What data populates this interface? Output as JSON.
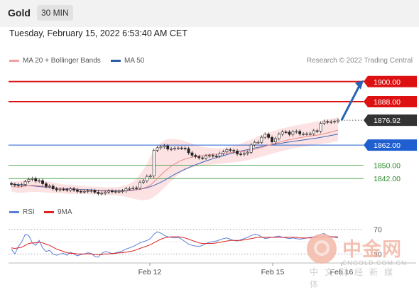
{
  "header": {
    "symbol": "Gold",
    "timeframe": "30 MIN"
  },
  "datetime": "Tuesday, February 15, 2022 6:53:40 AM CET",
  "legend": {
    "ma20": {
      "label": "MA 20 + Bollinger Bands",
      "color": "#f08080"
    },
    "ma50": {
      "label": "MA 50",
      "color": "#2a5ca8"
    },
    "rsi": {
      "label": "RSI",
      "color": "#5b7fd6"
    },
    "rsi_ma": {
      "label": "9MA",
      "color": "#dd2222"
    }
  },
  "credit": "Research © 2022 Trading Central",
  "watermark": {
    "logo_text": "中金网",
    "domain": "CNGOLD.COM.CN",
    "tagline": "中文财经新媒体"
  },
  "chart_data": [
    {
      "type": "candlestick",
      "title": "Gold",
      "timeframe": "30 MIN",
      "ylim": [
        1834,
        1908
      ],
      "x_tick_labels": [
        "Feb 12",
        "Feb 15",
        "Feb 16"
      ],
      "price_levels": [
        {
          "label": "1900.00",
          "value": 1900.0,
          "color": "#dd1111"
        },
        {
          "label": "1888.00",
          "value": 1888.0,
          "color": "#dd1111"
        },
        {
          "label": "1876.92",
          "value": 1876.92,
          "color": "#333333"
        },
        {
          "label": "1862.00",
          "value": 1862.0,
          "color": "#1f5fd0"
        },
        {
          "label": "1850.00",
          "value": 1850.0,
          "color": "#3a9a3a"
        },
        {
          "label": "1842.00",
          "value": 1842.0,
          "color": "#3a9a3a"
        }
      ],
      "close": [
        1838.5,
        1838.2,
        1837.9,
        1838.4,
        1840.2,
        1841.5,
        1842.0,
        1840.5,
        1840.8,
        1838.9,
        1837.3,
        1837.5,
        1835.9,
        1835.2,
        1835.6,
        1835.5,
        1835.0,
        1835.9,
        1835.1,
        1834.3,
        1834.1,
        1834.3,
        1834.6,
        1834.8,
        1833.8,
        1833.0,
        1833.2,
        1833.9,
        1834.5,
        1834.1,
        1834.2,
        1834.3,
        1834.6,
        1835.9,
        1836.0,
        1836.4,
        1836.3,
        1839.8,
        1840.5,
        1843.3,
        1843.5,
        1858.9,
        1860.4,
        1860.9,
        1861.6,
        1859.6,
        1859.8,
        1860.2,
        1860.3,
        1860.2,
        1859.9,
        1857.4,
        1855.9,
        1855.1,
        1854.4,
        1854.2,
        1855.5,
        1855.8,
        1855.5,
        1855.4,
        1857.0,
        1858.0,
        1859.3,
        1858.9,
        1858.5,
        1856.7,
        1856.5,
        1857.0,
        1857.7,
        1862.1,
        1863.7,
        1863.7,
        1866.7,
        1868.5,
        1866.6,
        1863.9,
        1865.9,
        1868.5,
        1869.9,
        1869.8,
        1868.4,
        1870.0,
        1870.2,
        1868.7,
        1868.7,
        1868.8,
        1868.8,
        1870.6,
        1870.3,
        1875.0,
        1876.1,
        1875.8,
        1876.0,
        1876.2,
        1876.9
      ],
      "ma20": [
        1837.1,
        1837.0,
        1836.9,
        1837.2,
        1837.5,
        1837.8,
        1837.9,
        1837.8,
        1837.6,
        1837.4,
        1837.1,
        1836.9,
        1836.6,
        1836.3,
        1836.0,
        1835.8,
        1835.6,
        1835.5,
        1835.4,
        1835.3,
        1835.2,
        1835.1,
        1835.0,
        1834.9,
        1834.8,
        1834.7,
        1834.6,
        1834.5,
        1834.5,
        1834.4,
        1834.4,
        1834.4,
        1834.5,
        1834.6,
        1834.7,
        1834.9,
        1835.2,
        1835.7,
        1836.3,
        1837.0,
        1838.0,
        1840.0,
        1842.0,
        1844.0,
        1846.0,
        1847.8,
        1849.3,
        1850.7,
        1851.9,
        1852.9,
        1853.7,
        1854.3,
        1854.8,
        1855.2,
        1855.5,
        1855.8,
        1856.0,
        1856.2,
        1856.4,
        1856.6,
        1856.8,
        1857.0,
        1857.3,
        1857.5,
        1857.7,
        1857.9,
        1858.1,
        1858.3,
        1858.6,
        1859.0,
        1859.5,
        1860.0,
        1860.6,
        1861.3,
        1861.9,
        1862.5,
        1863.1,
        1863.7,
        1864.3,
        1864.8,
        1865.3,
        1865.7,
        1866.1,
        1866.5,
        1866.8,
        1867.1,
        1867.4,
        1867.7,
        1868.0,
        1868.4,
        1868.8,
        1869.3,
        1869.8,
        1870.4,
        1871.0
      ],
      "bb_upper": [
        1840.0,
        1840.3,
        1840.5,
        1840.9,
        1841.3,
        1841.6,
        1841.8,
        1841.6,
        1841.3,
        1840.9,
        1840.5,
        1840.1,
        1839.7,
        1839.3,
        1838.9,
        1838.6,
        1838.4,
        1838.2,
        1838.0,
        1837.8,
        1837.6,
        1837.4,
        1837.3,
        1837.2,
        1837.1,
        1837.0,
        1836.9,
        1836.8,
        1836.8,
        1836.8,
        1836.9,
        1837.1,
        1837.5,
        1838.1,
        1838.9,
        1840.2,
        1842.0,
        1844.5,
        1847.5,
        1851.0,
        1855.0,
        1858.5,
        1861.5,
        1863.5,
        1864.8,
        1865.5,
        1865.8,
        1865.7,
        1865.4,
        1864.9,
        1864.3,
        1863.6,
        1862.9,
        1862.2,
        1861.6,
        1861.1,
        1860.7,
        1860.4,
        1860.2,
        1860.1,
        1860.1,
        1860.3,
        1860.6,
        1861.0,
        1861.5,
        1862.1,
        1862.8,
        1863.6,
        1864.5,
        1865.4,
        1866.3,
        1867.2,
        1868.0,
        1868.8,
        1869.5,
        1870.2,
        1870.8,
        1871.4,
        1872.0,
        1872.5,
        1873.0,
        1873.4,
        1873.8,
        1874.2,
        1874.6,
        1875.0,
        1875.4,
        1875.8,
        1876.2,
        1876.6,
        1877.0,
        1877.4,
        1877.8,
        1878.2,
        1878.6
      ],
      "bb_lower": [
        1834.2,
        1833.8,
        1833.4,
        1833.4,
        1833.6,
        1833.9,
        1834.0,
        1834.0,
        1833.9,
        1833.8,
        1833.6,
        1833.5,
        1833.4,
        1833.2,
        1833.1,
        1833.0,
        1832.9,
        1832.8,
        1832.8,
        1832.8,
        1832.8,
        1832.8,
        1832.7,
        1832.6,
        1832.5,
        1832.4,
        1832.3,
        1832.2,
        1832.2,
        1832.0,
        1831.9,
        1831.7,
        1831.5,
        1831.1,
        1830.6,
        1830.0,
        1829.5,
        1829.2,
        1829.0,
        1829.2,
        1829.8,
        1831.0,
        1832.5,
        1834.5,
        1836.5,
        1838.5,
        1840.5,
        1842.5,
        1844.3,
        1845.8,
        1847.0,
        1847.9,
        1848.6,
        1849.1,
        1849.5,
        1849.8,
        1850.0,
        1850.2,
        1850.4,
        1850.6,
        1850.8,
        1851.0,
        1851.3,
        1851.5,
        1851.7,
        1852.0,
        1852.3,
        1852.6,
        1853.0,
        1853.5,
        1854.0,
        1854.5,
        1855.1,
        1855.7,
        1856.3,
        1856.9,
        1857.5,
        1858.0,
        1858.5,
        1859.0,
        1859.5,
        1860.0,
        1860.4,
        1860.8,
        1861.1,
        1861.4,
        1861.7,
        1862.0,
        1862.3,
        1862.6,
        1862.9,
        1863.2,
        1863.6,
        1864.0,
        1864.4
      ],
      "ma50": [
        1838.8,
        1838.6,
        1838.4,
        1838.2,
        1838.0,
        1837.8,
        1837.6,
        1837.4,
        1837.2,
        1837.0,
        1836.8,
        1836.6,
        1836.4,
        1836.2,
        1836.1,
        1836.0,
        1835.9,
        1835.8,
        1835.7,
        1835.6,
        1835.5,
        1835.4,
        1835.3,
        1835.2,
        1835.1,
        1835.0,
        1834.9,
        1834.8,
        1834.8,
        1834.8,
        1834.8,
        1834.8,
        1834.8,
        1834.9,
        1835.0,
        1835.1,
        1835.3,
        1835.6,
        1836.0,
        1836.5,
        1837.1,
        1837.9,
        1838.8,
        1839.8,
        1840.9,
        1842.1,
        1843.3,
        1844.5,
        1845.6,
        1846.6,
        1847.6,
        1848.5,
        1849.4,
        1850.2,
        1851.0,
        1851.8,
        1852.5,
        1853.2,
        1853.9,
        1854.5,
        1855.1,
        1855.7,
        1856.3,
        1856.9,
        1857.4,
        1857.9,
        1858.4,
        1858.9,
        1859.3,
        1859.8,
        1860.3,
        1860.7,
        1861.1,
        1861.5,
        1861.9,
        1862.3,
        1862.6,
        1862.9,
        1863.2,
        1863.6,
        1863.9,
        1864.2,
        1864.5,
        1864.8,
        1865.1,
        1865.4,
        1865.7,
        1866.0,
        1866.3,
        1866.6,
        1867.0,
        1867.4,
        1867.8,
        1868.2,
        1868.6
      ],
      "projection": {
        "from": 1876.92,
        "to": 1900.0
      }
    },
    {
      "type": "line",
      "title": "RSI",
      "ylim": [
        20,
        80
      ],
      "y_tick_labels": [
        "70",
        "30"
      ],
      "series": [
        {
          "name": "RSI",
          "values": [
            38,
            30,
            42,
            50,
            62,
            60,
            48,
            44,
            52,
            40,
            34,
            36,
            30,
            28,
            30,
            31,
            28,
            33,
            30,
            27,
            29,
            30,
            32,
            31,
            26,
            25,
            31,
            34,
            33,
            30,
            32,
            33,
            35,
            38,
            40,
            42,
            45,
            48,
            50,
            52,
            55,
            62,
            66,
            64,
            60,
            58,
            57,
            56,
            57,
            54,
            50,
            46,
            44,
            43,
            42,
            44,
            47,
            49,
            50,
            51,
            53,
            55,
            56,
            54,
            52,
            51,
            53,
            55,
            57,
            60,
            62,
            61,
            58,
            55,
            56,
            57,
            58,
            59,
            57,
            56,
            55,
            56,
            55,
            54,
            55,
            56,
            57,
            58,
            59,
            62,
            63,
            60,
            58,
            57,
            56
          ]
        },
        {
          "name": "9MA",
          "values": [
            40,
            39,
            40,
            41,
            44,
            47,
            48,
            48,
            49,
            48,
            46,
            44,
            41,
            38,
            36,
            34,
            32,
            31,
            31,
            30,
            30,
            30,
            30,
            30,
            29,
            29,
            29,
            30,
            30,
            31,
            31,
            32,
            32,
            33,
            34,
            35,
            37,
            39,
            41,
            43,
            45,
            48,
            51,
            54,
            56,
            57,
            58,
            58,
            58,
            57,
            56,
            54,
            52,
            50,
            48,
            47,
            47,
            47,
            47,
            48,
            49,
            50,
            51,
            52,
            52,
            52,
            52,
            53,
            54,
            55,
            56,
            57,
            57,
            57,
            57,
            57,
            57,
            57,
            57,
            57,
            57,
            57,
            57,
            56,
            56,
            56,
            56,
            56,
            57,
            57,
            58,
            58,
            58,
            58,
            58
          ]
        }
      ]
    }
  ]
}
